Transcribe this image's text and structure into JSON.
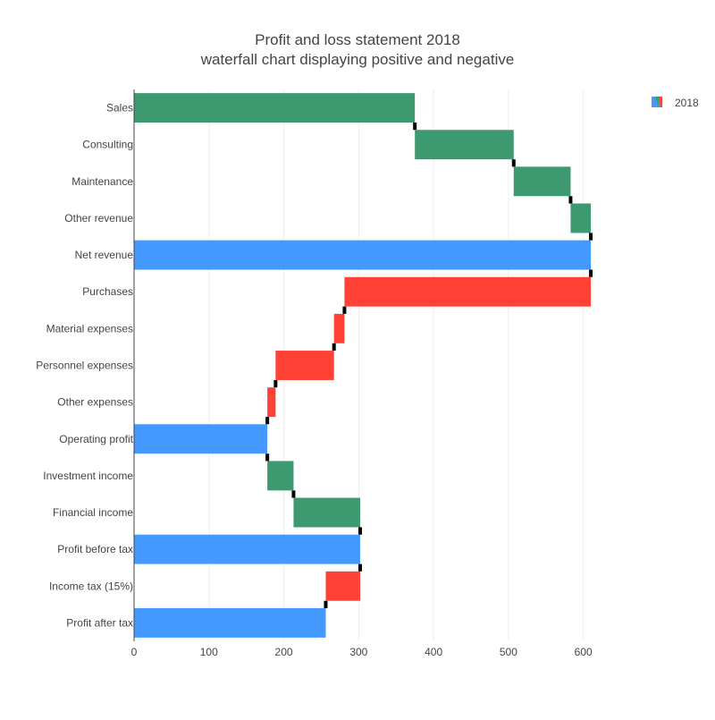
{
  "chart_data": {
    "type": "bar",
    "orientation": "horizontal",
    "variant": "waterfall",
    "title": "Profit and loss statement 2018",
    "subtitle": "waterfall chart displaying positive and negative",
    "xlabel": "",
    "ylabel": "",
    "xlim": [
      0,
      635
    ],
    "x_ticks": [
      0,
      100,
      200,
      300,
      400,
      500,
      600
    ],
    "grid": true,
    "legend": {
      "position": "top-right",
      "entries": [
        "2018"
      ]
    },
    "colors": {
      "increase": "#3d9970",
      "decrease": "#ff4136",
      "total": "#4499ff",
      "connector": "#000000"
    },
    "series": [
      {
        "name": "2018",
        "bars": [
          {
            "label": "Sales",
            "kind": "increase",
            "start": 0,
            "end": 375
          },
          {
            "label": "Consulting",
            "kind": "increase",
            "start": 375,
            "end": 507
          },
          {
            "label": "Maintenance",
            "kind": "increase",
            "start": 507,
            "end": 583
          },
          {
            "label": "Other revenue",
            "kind": "increase",
            "start": 583,
            "end": 610
          },
          {
            "label": "Net revenue",
            "kind": "total",
            "start": 0,
            "end": 610
          },
          {
            "label": "Purchases",
            "kind": "decrease",
            "start": 610,
            "end": 281
          },
          {
            "label": "Material expenses",
            "kind": "decrease",
            "start": 281,
            "end": 267
          },
          {
            "label": "Personnel expenses",
            "kind": "decrease",
            "start": 267,
            "end": 189
          },
          {
            "label": "Other expenses",
            "kind": "decrease",
            "start": 189,
            "end": 178
          },
          {
            "label": "Operating profit",
            "kind": "total",
            "start": 0,
            "end": 178
          },
          {
            "label": "Investment income",
            "kind": "increase",
            "start": 178,
            "end": 213
          },
          {
            "label": "Financial income",
            "kind": "increase",
            "start": 213,
            "end": 302
          },
          {
            "label": "Profit before tax",
            "kind": "total",
            "start": 0,
            "end": 302
          },
          {
            "label": "Income tax (15%)",
            "kind": "decrease",
            "start": 302,
            "end": 256
          },
          {
            "label": "Profit after tax",
            "kind": "total",
            "start": 0,
            "end": 256
          }
        ]
      }
    ]
  }
}
